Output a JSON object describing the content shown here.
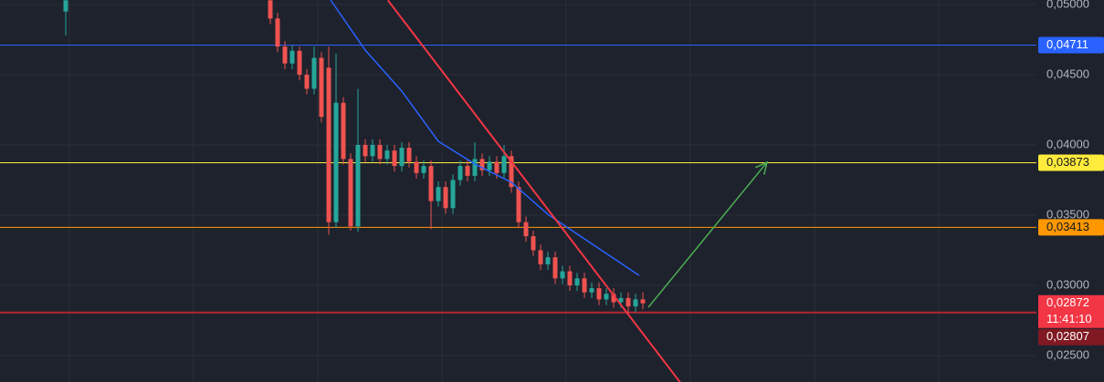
{
  "chart_data": {
    "type": "candlestick",
    "x": [
      -28,
      0,
      1,
      2,
      3,
      4,
      5,
      6,
      7,
      8,
      9,
      10,
      11,
      12,
      13,
      14,
      15,
      16,
      17,
      18,
      19,
      20,
      21,
      22,
      23,
      24,
      25,
      26,
      27,
      28,
      29,
      30,
      31,
      32,
      33,
      34,
      35,
      36,
      37,
      38,
      39,
      40,
      41,
      42,
      43,
      44,
      45,
      46,
      47,
      48,
      49,
      50,
      51
    ],
    "open": [
      0.0495,
      0.0503,
      0.049,
      0.047,
      0.0458,
      0.0467,
      0.045,
      0.044,
      0.0462,
      0.0455,
      0.0345,
      0.043,
      0.039,
      0.0342,
      0.04,
      0.0392,
      0.04,
      0.039,
      0.0396,
      0.0385,
      0.0398,
      0.0388,
      0.038,
      0.0385,
      0.036,
      0.037,
      0.0355,
      0.0375,
      0.0385,
      0.0378,
      0.039,
      0.0382,
      0.0388,
      0.038,
      0.0392,
      0.037,
      0.0345,
      0.0335,
      0.0325,
      0.0315,
      0.032,
      0.0305,
      0.031,
      0.03,
      0.0305,
      0.0295,
      0.0298,
      0.029,
      0.0294,
      0.0288,
      0.0291,
      0.0285,
      0.029
    ],
    "close": [
      0.0503,
      0.049,
      0.047,
      0.0458,
      0.0467,
      0.045,
      0.044,
      0.0462,
      0.042,
      0.0345,
      0.043,
      0.039,
      0.0342,
      0.04,
      0.0392,
      0.04,
      0.039,
      0.0396,
      0.0385,
      0.0398,
      0.0388,
      0.038,
      0.0385,
      0.036,
      0.037,
      0.0355,
      0.0375,
      0.0385,
      0.0378,
      0.039,
      0.0382,
      0.0388,
      0.038,
      0.0392,
      0.037,
      0.0345,
      0.0335,
      0.0325,
      0.0315,
      0.032,
      0.0305,
      0.031,
      0.03,
      0.0305,
      0.0295,
      0.0298,
      0.029,
      0.0294,
      0.0288,
      0.0291,
      0.0285,
      0.029,
      0.02872
    ],
    "high": [
      0.0505,
      0.0505,
      0.0494,
      0.0474,
      0.0471,
      0.047,
      0.0454,
      0.047,
      0.0466,
      0.047,
      0.0465,
      0.0434,
      0.0394,
      0.044,
      0.0404,
      0.0404,
      0.0404,
      0.04,
      0.04,
      0.0402,
      0.0402,
      0.0392,
      0.0389,
      0.0389,
      0.0374,
      0.0374,
      0.0379,
      0.0389,
      0.0389,
      0.0402,
      0.0394,
      0.0392,
      0.0392,
      0.04,
      0.0396,
      0.0374,
      0.0349,
      0.0339,
      0.0329,
      0.0324,
      0.0324,
      0.0314,
      0.0314,
      0.0309,
      0.0309,
      0.0302,
      0.0302,
      0.0298,
      0.0298,
      0.0295,
      0.0295,
      0.0294,
      0.0295
    ],
    "low": [
      0.0478,
      0.0486,
      0.0466,
      0.0454,
      0.0454,
      0.0446,
      0.0436,
      0.0436,
      0.0416,
      0.0336,
      0.0341,
      0.0386,
      0.0339,
      0.0338,
      0.0388,
      0.0388,
      0.0386,
      0.0386,
      0.0381,
      0.0381,
      0.0384,
      0.0376,
      0.0376,
      0.034,
      0.0356,
      0.0351,
      0.0351,
      0.0371,
      0.0374,
      0.0374,
      0.0378,
      0.0378,
      0.0376,
      0.0376,
      0.0366,
      0.0341,
      0.0331,
      0.0321,
      0.0311,
      0.0311,
      0.0301,
      0.0301,
      0.0296,
      0.0296,
      0.0291,
      0.0291,
      0.0286,
      0.0286,
      0.0284,
      0.0284,
      0.028,
      0.0281,
      0.0283
    ],
    "up_color": "#26a69a",
    "down_color": "#ef5350",
    "xlim": [
      -37,
      104.875
    ],
    "ylim": [
      0.02312,
      0.05032
    ],
    "xgrid": [
      -27.5,
      -10.5,
      6.5,
      23.5,
      40.5,
      57.5,
      74.5,
      91.5
    ],
    "yticks": [
      {
        "value": 0.05,
        "label": "0,05000"
      },
      {
        "value": 0.045,
        "label": "0,04500"
      },
      {
        "value": 0.04,
        "label": "0,04000"
      },
      {
        "value": 0.035,
        "label": "0,03500"
      },
      {
        "value": 0.03,
        "label": "0,03000"
      },
      {
        "value": 0.025,
        "label": "0,02500"
      }
    ],
    "levels": [
      {
        "value": 0.04711,
        "label": "0,04711",
        "color": "#2962ff"
      },
      {
        "value": 0.03873,
        "label": "0,03873",
        "color": "#ffeb3b"
      },
      {
        "value": 0.03413,
        "label": "0,03413",
        "color": "#ff9800"
      },
      {
        "value": 0.02807,
        "label": "0,02807",
        "color": "#b22833"
      }
    ],
    "current_price": {
      "value": 0.02872,
      "label": "0,02872",
      "countdown": "11:41:10",
      "color": "#f23645"
    },
    "moving_average": {
      "color": "#2962ff",
      "x": [
        8.25,
        13,
        18,
        23,
        28,
        33,
        38,
        43,
        50.5
      ],
      "y": [
        0.05032,
        0.04675,
        0.04383,
        0.04026,
        0.03864,
        0.03734,
        0.03506,
        0.03331,
        0.03071
      ]
    },
    "trendline": {
      "color": "#f23645",
      "x": [
        16.1,
        56.1
      ],
      "y": [
        0.0503,
        0.0231
      ]
    },
    "arrow": {
      "color": "#4caf50",
      "x": [
        51.75,
        68
      ],
      "y": [
        0.02844,
        0.03877
      ]
    }
  }
}
